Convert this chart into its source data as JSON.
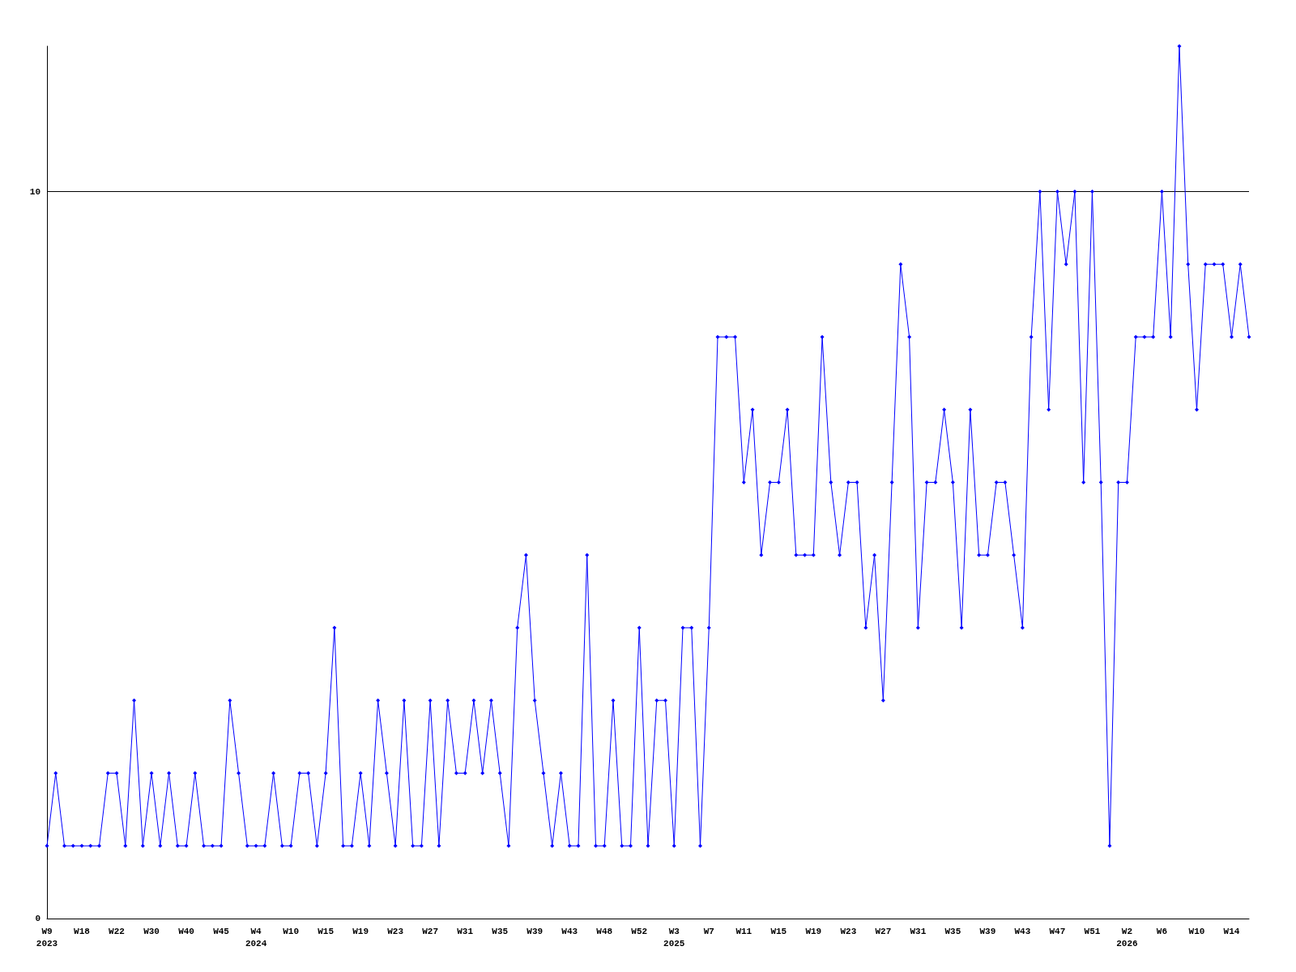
{
  "chart_data": {
    "type": "line",
    "categories": [
      "W9\n2023",
      null,
      null,
      null,
      "W18",
      null,
      null,
      null,
      "W22",
      null,
      null,
      null,
      "W30",
      null,
      null,
      null,
      "W40",
      null,
      null,
      null,
      "W45",
      null,
      null,
      null,
      "W4\n2024",
      null,
      null,
      null,
      "W10",
      null,
      null,
      null,
      "W15",
      null,
      null,
      null,
      "W19",
      null,
      null,
      null,
      "W23",
      null,
      null,
      null,
      "W27",
      null,
      null,
      null,
      "W31",
      null,
      null,
      null,
      "W35",
      null,
      null,
      null,
      "W39",
      null,
      null,
      null,
      "W43",
      null,
      null,
      null,
      "W48",
      null,
      null,
      null,
      "W52",
      null,
      null,
      null,
      "W3\n2025",
      null,
      null,
      null,
      "W7",
      null,
      null,
      null,
      "W11",
      null,
      null,
      null,
      "W15",
      null,
      null,
      null,
      "W19",
      null,
      null,
      null,
      "W23",
      null,
      null,
      null,
      "W27",
      null,
      null,
      null,
      "W31",
      null,
      null,
      null,
      "W35",
      null,
      null,
      null,
      "W39",
      null,
      null,
      null,
      "W43",
      null,
      null,
      null,
      "W47",
      null,
      null,
      null,
      "W51",
      null,
      null,
      null,
      "W2\n2026",
      null,
      null,
      null,
      "W6",
      null,
      null,
      null,
      "W10",
      null,
      null,
      null,
      "W14",
      null,
      null
    ],
    "series": [
      {
        "color": "#0000ff",
        "values": [
          1,
          2,
          1,
          1,
          1,
          1,
          1,
          2,
          2,
          1,
          3,
          1,
          2,
          1,
          2,
          1,
          1,
          2,
          1,
          1,
          1,
          3,
          2,
          1,
          1,
          1,
          2,
          1,
          1,
          2,
          2,
          1,
          2,
          4,
          1,
          1,
          2,
          1,
          3,
          2,
          1,
          3,
          1,
          1,
          3,
          1,
          3,
          2,
          2,
          3,
          2,
          3,
          2,
          1,
          4,
          5,
          3,
          2,
          1,
          2,
          1,
          1,
          5,
          1,
          1,
          3,
          1,
          1,
          4,
          1,
          3,
          3,
          1,
          4,
          4,
          1,
          4,
          8,
          8,
          8,
          6,
          7,
          5,
          6,
          6,
          7,
          5,
          5,
          5,
          8,
          6,
          5,
          6,
          6,
          4,
          5,
          3,
          6,
          9,
          8,
          4,
          6,
          6,
          7,
          6,
          4,
          7,
          5,
          5,
          6,
          6,
          5,
          4,
          8,
          10,
          7,
          10,
          9,
          10,
          6,
          10,
          6,
          1,
          6,
          6,
          8,
          8,
          8,
          10,
          8,
          12,
          9,
          7,
          9,
          9,
          9,
          8,
          9,
          8
        ]
      }
    ],
    "ylim": [
      0,
      12
    ],
    "yticks": [
      0,
      10
    ],
    "grid": "y",
    "marker": "diamond",
    "line_style": "solid"
  }
}
